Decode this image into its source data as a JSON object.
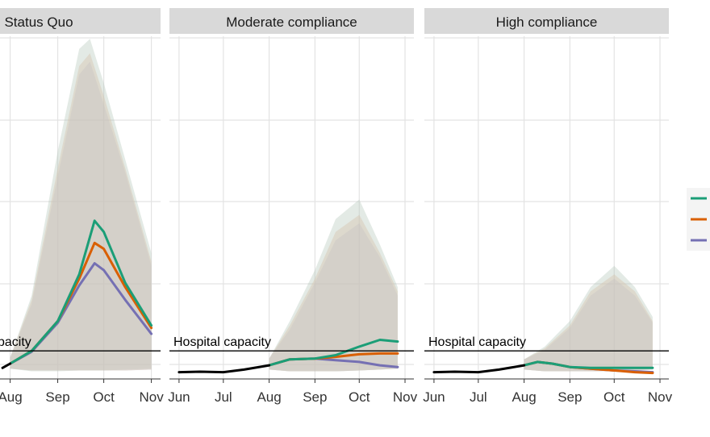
{
  "chart_data": {
    "type": "line",
    "panels": [
      {
        "title": "Status Quo",
        "x_ticks": [
          "Aug",
          "Sep",
          "Oct",
          "Nov"
        ],
        "capacity_label": "pacity",
        "observed": [
          [
            "Jul 27",
            0.5
          ],
          [
            "Aug 1",
            1.0
          ]
        ],
        "series": [
          {
            "color": "#1b9e77",
            "values": [
              [
                "Aug 1",
                1.0
              ],
              [
                "Aug 15",
                2.5
              ],
              [
                "Sep 1",
                6.0
              ],
              [
                "Sep 15",
                11.5
              ],
              [
                "Sep 25",
                17.8
              ],
              [
                "Oct 1",
                16.5
              ],
              [
                "Oct 15",
                10.5
              ],
              [
                "Nov 1",
                5.5
              ]
            ],
            "band": [
              [
                "Aug 1",
                0.4,
                1.7
              ],
              [
                "Aug 15",
                0.1,
                9.0
              ],
              [
                "Sep 1",
                0.1,
                26.0
              ],
              [
                "Sep 15",
                0.2,
                38.0
              ],
              [
                "Sep 22",
                0.2,
                39.2
              ],
              [
                "Oct 1",
                0.2,
                34.0
              ],
              [
                "Oct 15",
                0.3,
                25.0
              ],
              [
                "Nov 1",
                0.4,
                14.0
              ]
            ]
          },
          {
            "color": "#d95f02",
            "values": [
              [
                "Aug 1",
                1.0
              ],
              [
                "Aug 15",
                2.5
              ],
              [
                "Sep 1",
                6.0
              ],
              [
                "Sep 15",
                11.0
              ],
              [
                "Sep 25",
                15.2
              ],
              [
                "Oct 1",
                14.5
              ],
              [
                "Oct 15",
                10.0
              ],
              [
                "Nov 1",
                5.2
              ]
            ],
            "band": [
              [
                "Aug 1",
                0.4,
                1.7
              ],
              [
                "Aug 15",
                0.2,
                8.5
              ],
              [
                "Sep 1",
                0.2,
                24.0
              ],
              [
                "Sep 15",
                0.2,
                36.0
              ],
              [
                "Sep 22",
                0.2,
                37.5
              ],
              [
                "Oct 1",
                0.2,
                32.5
              ],
              [
                "Oct 15",
                0.2,
                24.0
              ],
              [
                "Nov 1",
                0.3,
                13.0
              ]
            ]
          },
          {
            "color": "#7570b3",
            "values": [
              [
                "Aug 1",
                1.0
              ],
              [
                "Aug 15",
                2.4
              ],
              [
                "Sep 1",
                5.8
              ],
              [
                "Sep 15",
                10.2
              ],
              [
                "Sep 25",
                12.8
              ],
              [
                "Oct 1",
                12.0
              ],
              [
                "Oct 15",
                8.5
              ],
              [
                "Nov 1",
                4.5
              ]
            ],
            "band": [
              [
                "Aug 1",
                0.4,
                1.7
              ],
              [
                "Aug 15",
                0.2,
                8.0
              ],
              [
                "Sep 1",
                0.2,
                23.0
              ],
              [
                "Sep 15",
                0.2,
                35.0
              ],
              [
                "Sep 22",
                0.2,
                36.5
              ],
              [
                "Oct 1",
                0.2,
                31.5
              ],
              [
                "Oct 15",
                0.2,
                23.5
              ],
              [
                "Nov 1",
                0.3,
                12.5
              ]
            ]
          }
        ]
      },
      {
        "title": "Moderate compliance",
        "x_ticks": [
          "Jun",
          "Jul",
          "Aug",
          "Sep",
          "Oct",
          "Nov"
        ],
        "capacity_label": "Hospital capacity",
        "observed": [
          [
            "Jun 1",
            0.0
          ],
          [
            "Jun 15",
            0.05
          ],
          [
            "Jul 1",
            0.0
          ],
          [
            "Jul 15",
            0.3
          ],
          [
            "Aug 1",
            0.8
          ]
        ],
        "series": [
          {
            "color": "#1b9e77",
            "values": [
              [
                "Aug 1",
                0.8
              ],
              [
                "Aug 15",
                1.5
              ],
              [
                "Sep 1",
                1.6
              ],
              [
                "Sep 15",
                2.0
              ],
              [
                "Oct 1",
                3.0
              ],
              [
                "Oct 15",
                3.8
              ],
              [
                "Oct 27",
                3.6
              ]
            ],
            "band": [
              [
                "Aug 1",
                0.3,
                1.6
              ],
              [
                "Aug 15",
                0.1,
                6.0
              ],
              [
                "Sep 1",
                0.1,
                12.0
              ],
              [
                "Sep 15",
                0.1,
                18.0
              ],
              [
                "Oct 1",
                0.2,
                20.3
              ],
              [
                "Oct 15",
                0.3,
                15.0
              ],
              [
                "Oct 27",
                0.4,
                10.0
              ]
            ]
          },
          {
            "color": "#d95f02",
            "values": [
              [
                "Aug 1",
                0.8
              ],
              [
                "Aug 15",
                1.5
              ],
              [
                "Sep 1",
                1.6
              ],
              [
                "Sep 15",
                1.8
              ],
              [
                "Oct 1",
                2.1
              ],
              [
                "Oct 15",
                2.2
              ],
              [
                "Oct 27",
                2.2
              ]
            ],
            "band": [
              [
                "Aug 1",
                0.3,
                1.6
              ],
              [
                "Aug 15",
                0.1,
                5.5
              ],
              [
                "Sep 1",
                0.1,
                11.0
              ],
              [
                "Sep 15",
                0.1,
                16.5
              ],
              [
                "Oct 1",
                0.2,
                18.5
              ],
              [
                "Oct 15",
                0.3,
                14.0
              ],
              [
                "Oct 27",
                0.4,
                9.5
              ]
            ]
          },
          {
            "color": "#7570b3",
            "values": [
              [
                "Aug 1",
                0.8
              ],
              [
                "Aug 15",
                1.5
              ],
              [
                "Sep 1",
                1.6
              ],
              [
                "Sep 15",
                1.4
              ],
              [
                "Oct 1",
                1.2
              ],
              [
                "Oct 15",
                0.8
              ],
              [
                "Oct 27",
                0.6
              ]
            ],
            "band": [
              [
                "Aug 1",
                0.3,
                1.6
              ],
              [
                "Aug 15",
                0.1,
                5.0
              ],
              [
                "Sep 1",
                0.1,
                10.5
              ],
              [
                "Sep 15",
                0.1,
                15.5
              ],
              [
                "Oct 1",
                0.2,
                17.5
              ],
              [
                "Oct 15",
                0.3,
                13.5
              ],
              [
                "Oct 27",
                0.4,
                9.0
              ]
            ]
          }
        ]
      },
      {
        "title": "High compliance",
        "x_ticks": [
          "Jun",
          "Jul",
          "Aug",
          "Sep",
          "Oct",
          "Nov"
        ],
        "capacity_label": "Hospital capacity",
        "observed": [
          [
            "Jun 1",
            0.0
          ],
          [
            "Jun 15",
            0.05
          ],
          [
            "Jul 1",
            0.0
          ],
          [
            "Jul 15",
            0.3
          ],
          [
            "Aug 1",
            0.8
          ]
        ],
        "series": [
          {
            "color": "#1b9e77",
            "values": [
              [
                "Aug 1",
                0.8
              ],
              [
                "Aug 10",
                1.2
              ],
              [
                "Aug 20",
                1.0
              ],
              [
                "Sep 1",
                0.6
              ],
              [
                "Sep 15",
                0.5
              ],
              [
                "Oct 1",
                0.5
              ],
              [
                "Oct 15",
                0.5
              ],
              [
                "Oct 27",
                0.5
              ]
            ],
            "band": [
              [
                "Aug 1",
                0.3,
                1.5
              ],
              [
                "Aug 15",
                0.1,
                3.0
              ],
              [
                "Sep 1",
                0.1,
                6.0
              ],
              [
                "Sep 15",
                0.1,
                10.0
              ],
              [
                "Oct 1",
                0.2,
                12.5
              ],
              [
                "Oct 15",
                0.3,
                10.0
              ],
              [
                "Oct 27",
                0.4,
                6.5
              ]
            ]
          },
          {
            "color": "#d95f02",
            "values": [
              [
                "Aug 1",
                0.8
              ],
              [
                "Aug 10",
                1.2
              ],
              [
                "Aug 20",
                1.0
              ],
              [
                "Sep 1",
                0.6
              ],
              [
                "Sep 15",
                0.4
              ],
              [
                "Oct 1",
                0.2
              ],
              [
                "Oct 15",
                0.0
              ],
              [
                "Oct 27",
                -0.1
              ]
            ],
            "band": [
              [
                "Aug 1",
                0.3,
                1.5
              ],
              [
                "Aug 15",
                0.1,
                2.8
              ],
              [
                "Sep 1",
                0.1,
                5.5
              ],
              [
                "Sep 15",
                0.1,
                9.5
              ],
              [
                "Oct 1",
                0.1,
                11.5
              ],
              [
                "Oct 15",
                0.2,
                9.5
              ],
              [
                "Oct 27",
                0.3,
                6.0
              ]
            ]
          },
          {
            "color": "#7570b3",
            "values": [
              [
                "Aug 1",
                0.8
              ],
              [
                "Aug 10",
                1.2
              ],
              [
                "Aug 20",
                1.0
              ],
              [
                "Sep 1",
                0.6
              ],
              [
                "Sep 15",
                0.4
              ],
              [
                "Oct 1",
                0.2
              ],
              [
                "Oct 15",
                0.1
              ],
              [
                "Oct 27",
                0.0
              ]
            ],
            "band": [
              [
                "Aug 1",
                0.3,
                1.5
              ],
              [
                "Aug 15",
                0.1,
                2.6
              ],
              [
                "Sep 1",
                0.1,
                5.2
              ],
              [
                "Sep 15",
                0.1,
                9.0
              ],
              [
                "Oct 1",
                0.1,
                11.0
              ],
              [
                "Oct 15",
                0.2,
                9.0
              ],
              [
                "Oct 27",
                0.3,
                5.8
              ]
            ]
          }
        ]
      }
    ],
    "hospital_capacity": 2.5,
    "observed_color": "#000000",
    "band_color": "#d3d0c9",
    "ylim": [
      -0.8,
      39.5
    ],
    "grid": true,
    "legend_position": "right",
    "legend_colors": [
      "#1b9e77",
      "#d95f02",
      "#7570b3"
    ]
  }
}
